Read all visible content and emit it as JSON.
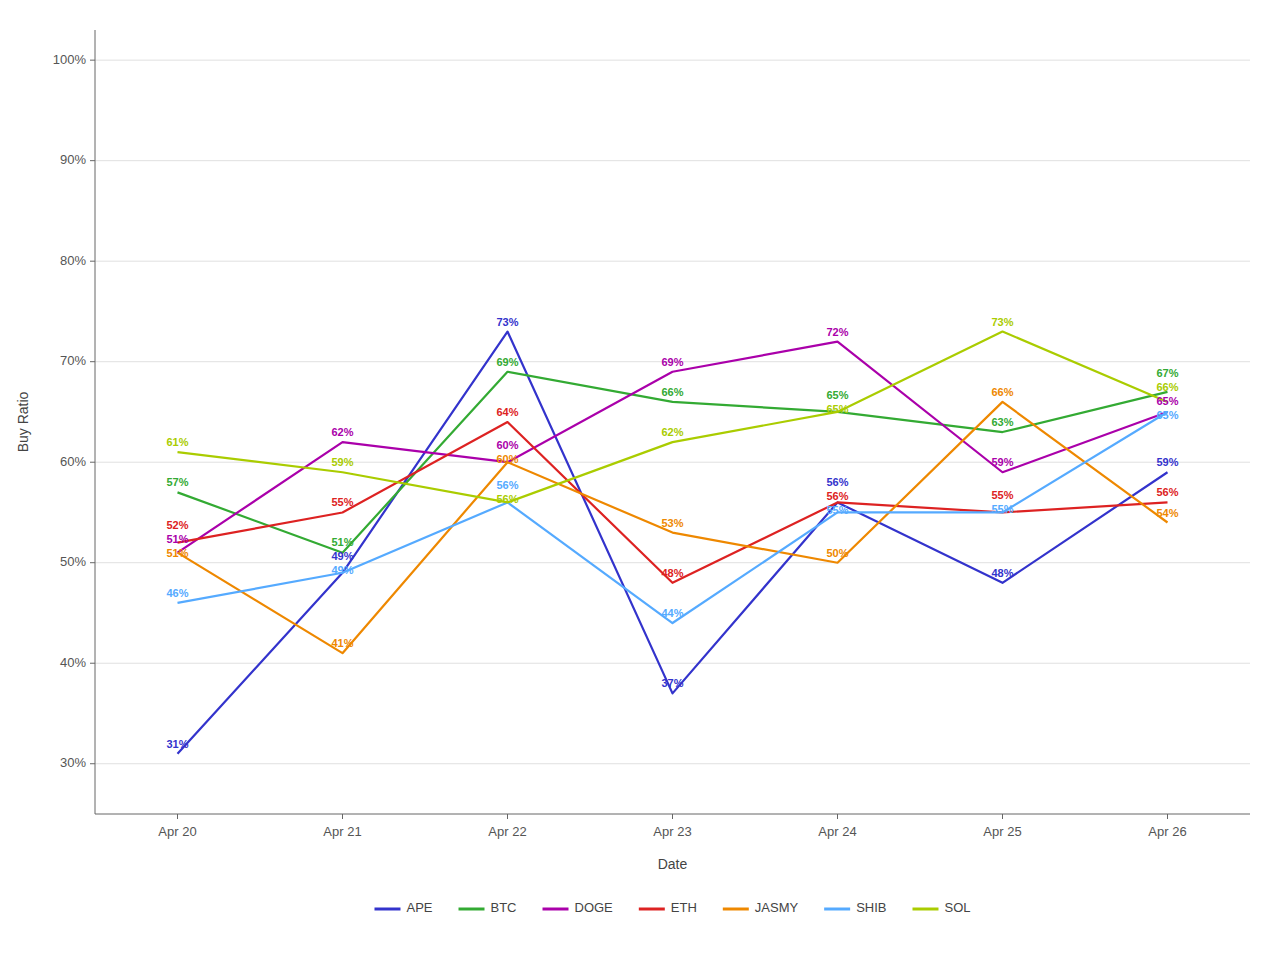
{
  "chart_data": {
    "type": "line",
    "xlabel": "Date",
    "ylabel": "Buy Ratio",
    "categories": [
      "Apr 20",
      "Apr 21",
      "Apr 22",
      "Apr 23",
      "Apr 24",
      "Apr 25",
      "Apr 26"
    ],
    "series": [
      {
        "name": "APE",
        "color": "#3333cc",
        "values": [
          31,
          49,
          73,
          37,
          56,
          48,
          59
        ],
        "value_labels": [
          "31%",
          "49%",
          "73%",
          "37%",
          "56%",
          "48%",
          "59%"
        ]
      },
      {
        "name": "BTC",
        "color": "#33aa33",
        "values": [
          57,
          51,
          69,
          66,
          65,
          63,
          67
        ],
        "value_labels": [
          "57%",
          "51%",
          "69%",
          "66%",
          "65%",
          "63%",
          "67%"
        ]
      },
      {
        "name": "DOGE",
        "color": "#aa00aa",
        "values": [
          51,
          62,
          60,
          69,
          72,
          59,
          65
        ],
        "value_labels": [
          "51%",
          "62%",
          "60%",
          "69%",
          "72%",
          "59%",
          "65%"
        ]
      },
      {
        "name": "ETH",
        "color": "#dd2222",
        "values": [
          52,
          55,
          64,
          48,
          56,
          55,
          56
        ],
        "value_labels": [
          "52%",
          "55%",
          "64%",
          "48%",
          "56%",
          "55%",
          "56%"
        ]
      },
      {
        "name": "JASMY",
        "color": "#ee8800",
        "values": [
          51,
          41,
          60,
          53,
          50,
          66,
          54
        ],
        "value_labels": [
          "51%",
          "41%",
          "60%",
          "53%",
          "50%",
          "66%",
          "54%"
        ]
      },
      {
        "name": "SHIB",
        "color": "#55aaff",
        "values": [
          46,
          49,
          56,
          44,
          55,
          55,
          65
        ],
        "value_labels": [
          "46%",
          "49%",
          "56%",
          "44%",
          "55%",
          "55%",
          "65%"
        ]
      },
      {
        "name": "SOL",
        "color": "#aacc00",
        "values": [
          61,
          59,
          56,
          62,
          65,
          73,
          66
        ],
        "value_labels": [
          "61%",
          "59%",
          "56%",
          "62%",
          "65%",
          "73%",
          "66%"
        ]
      }
    ],
    "ylim": [
      25,
      103
    ],
    "yticks": [
      {
        "value": 30,
        "label": "30%"
      },
      {
        "value": 40,
        "label": "40%"
      },
      {
        "value": 50,
        "label": "50%"
      },
      {
        "value": 60,
        "label": "60%"
      },
      {
        "value": 70,
        "label": "70%"
      },
      {
        "value": 80,
        "label": "80%"
      },
      {
        "value": 90,
        "label": "90%"
      },
      {
        "value": 100,
        "label": "100%"
      }
    ],
    "grid": true,
    "legend": "bottom",
    "data_labels": true
  }
}
